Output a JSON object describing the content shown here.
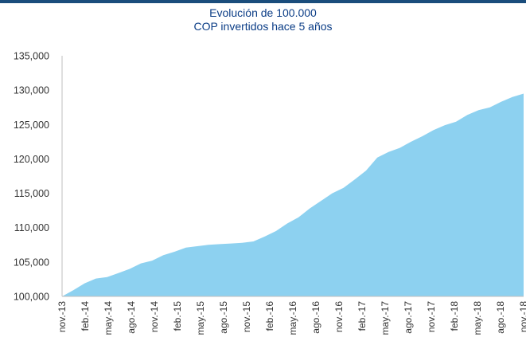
{
  "title_line1": "Evolución de 100.000",
  "title_line2": "COP invertidos hace 5 años",
  "chart_data": {
    "type": "area",
    "title": "Evolución de 100.000 COP invertidos hace 5 años",
    "xlabel": "",
    "ylabel": "",
    "ylim": [
      100000,
      135000
    ],
    "yticks": [
      "100,000",
      "105,000",
      "110,000",
      "115,000",
      "120,000",
      "125,000",
      "130,000",
      "135,000"
    ],
    "xticks": [
      "nov.-13",
      "feb.-14",
      "may.-14",
      "ago.-14",
      "nov.-14",
      "feb.-15",
      "may.-15",
      "ago.-15",
      "nov.-15",
      "feb.-16",
      "may.-16",
      "ago.-16",
      "nov.-16",
      "feb.-17",
      "may.-17",
      "ago.-17",
      "nov.-17",
      "feb.-18",
      "may.-18",
      "ago.-18",
      "nov.-18"
    ],
    "grid": false,
    "fill_color": "#8dd1f0",
    "series": [
      {
        "values": [
          100000,
          100900,
          101900,
          102600,
          102800,
          103400,
          104000,
          104800,
          105200,
          106000,
          106500,
          107100,
          107300,
          107500,
          107600,
          107700,
          107800,
          108000,
          108700,
          109500,
          110600,
          111500,
          112800,
          113900,
          115000,
          115800,
          117000,
          118300,
          120200,
          121000,
          121600,
          122500,
          123300,
          124200,
          124900,
          125400,
          126400,
          127100,
          127500,
          128300,
          129000,
          129500
        ]
      }
    ]
  }
}
